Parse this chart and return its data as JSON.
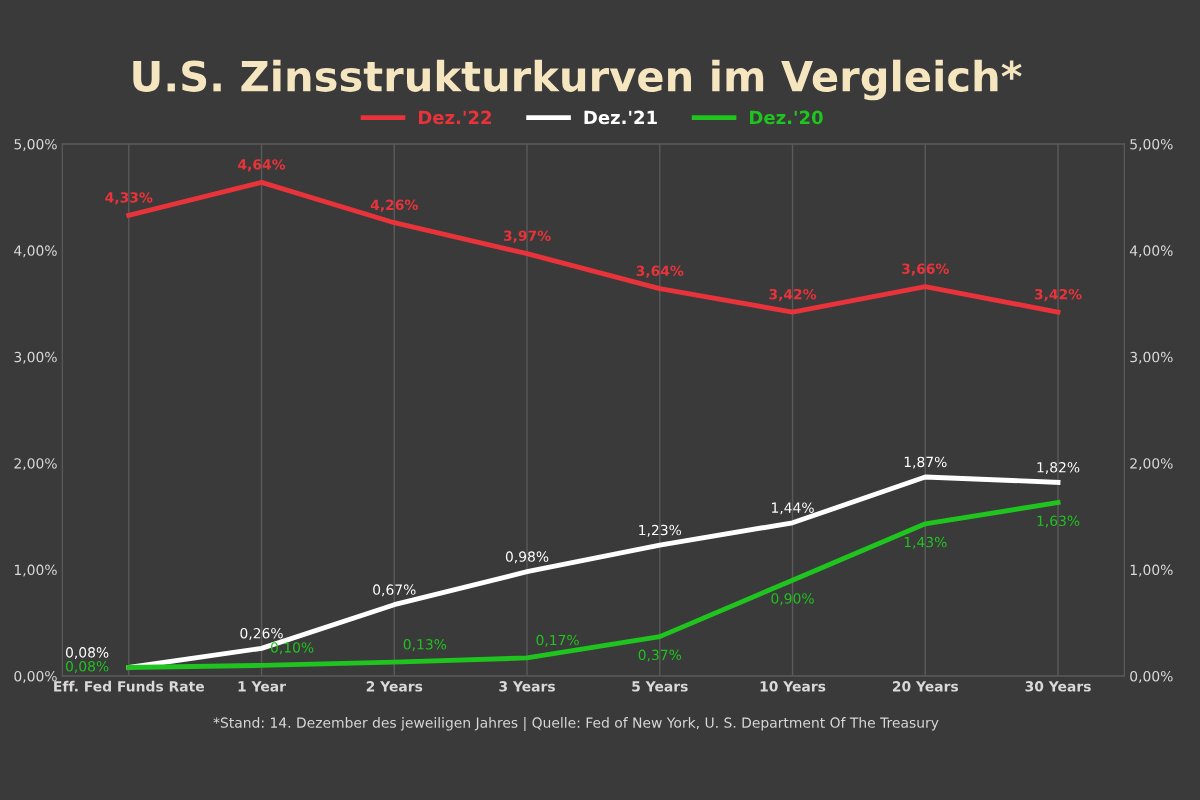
{
  "chart_data": {
    "type": "line",
    "title": "U.S. Zinsstrukturkurven im Vergleich*",
    "categories": [
      "Eff. Fed Funds Rate",
      "1 Year",
      "2 Years",
      "3 Years",
      "5 Years",
      "10 Years",
      "20 Years",
      "30 Years"
    ],
    "series": [
      {
        "name": "Dez.'22",
        "color": "#e8333a",
        "values": [
          4.33,
          4.64,
          4.26,
          3.97,
          3.64,
          3.42,
          3.66,
          3.42
        ],
        "value_labels": [
          "4,33%",
          "4,64%",
          "4,26%",
          "3,97%",
          "3,64%",
          "3,42%",
          "3,66%",
          "3,42%"
        ]
      },
      {
        "name": "Dez.'21",
        "color": "#ffffff",
        "values": [
          0.08,
          0.26,
          0.67,
          0.98,
          1.23,
          1.44,
          1.87,
          1.82
        ],
        "value_labels": [
          "0,08%",
          "0,26%",
          "0,67%",
          "0,98%",
          "1,23%",
          "1,44%",
          "1,87%",
          "1,82%"
        ]
      },
      {
        "name": "Dez.'20",
        "color": "#1fc41f",
        "values": [
          0.08,
          0.1,
          0.13,
          0.17,
          0.37,
          0.9,
          1.43,
          1.63
        ],
        "value_labels": [
          "0,08%",
          "0,10%",
          "0,13%",
          "0,17%",
          "0,37%",
          "0,90%",
          "1,43%",
          "1,63%"
        ]
      }
    ],
    "ylim": [
      0,
      5
    ],
    "yticks": [
      {
        "value": 0,
        "label": "0,00%"
      },
      {
        "value": 1,
        "label": "1,00%"
      },
      {
        "value": 2,
        "label": "2,00%"
      },
      {
        "value": 3,
        "label": "3,00%"
      },
      {
        "value": 4,
        "label": "4,00%"
      },
      {
        "value": 5,
        "label": "5,00%"
      }
    ],
    "y2lim": [
      0,
      5
    ],
    "y2ticks": [
      {
        "value": 0,
        "label": "0,00%"
      },
      {
        "value": 1,
        "label": "1,00%"
      },
      {
        "value": 2,
        "label": "2,00%"
      },
      {
        "value": 3,
        "label": "3,00%"
      },
      {
        "value": 4,
        "label": "4,00%"
      },
      {
        "value": 5,
        "label": "5,00%"
      }
    ],
    "grid": "x",
    "legend": "top",
    "marker": "none",
    "line_style": "solid",
    "annotations": [
      "*Stand: 14. Dezember des jeweiligen Jahres | Quelle: Fed of New York, U. S. Department Of The Treasury"
    ]
  }
}
